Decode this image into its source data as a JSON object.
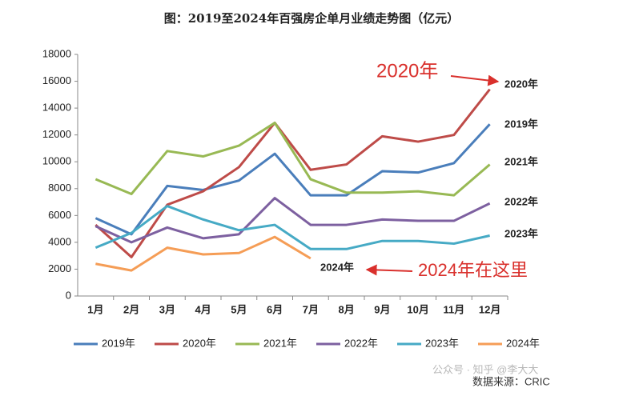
{
  "chart_data": {
    "type": "line",
    "title": "图：2019至2024年百强房企单月业绩走势图（亿元）",
    "categories": [
      "1月",
      "2月",
      "3月",
      "4月",
      "5月",
      "6月",
      "7月",
      "8月",
      "9月",
      "10月",
      "11月",
      "12月"
    ],
    "series": [
      {
        "name": "2019年",
        "color": "#4a7ebb",
        "values": [
          5800,
          4600,
          8200,
          7900,
          8600,
          10600,
          7500,
          7500,
          9300,
          9200,
          9900,
          12800
        ]
      },
      {
        "name": "2020年",
        "color": "#be4b48",
        "values": [
          5300,
          2900,
          6800,
          7800,
          9600,
          12900,
          9400,
          9800,
          11900,
          11500,
          12000,
          15400
        ]
      },
      {
        "name": "2021年",
        "color": "#98b954",
        "values": [
          8700,
          7600,
          10800,
          10400,
          11200,
          12900,
          8700,
          7700,
          7700,
          7800,
          7500,
          9800
        ]
      },
      {
        "name": "2022年",
        "color": "#7d60a0",
        "values": [
          5200,
          4000,
          5100,
          4300,
          4600,
          7300,
          5300,
          5300,
          5700,
          5600,
          5600,
          6900
        ]
      },
      {
        "name": "2023年",
        "color": "#46aac5",
        "values": [
          3600,
          4700,
          6700,
          5700,
          4900,
          5300,
          3500,
          3500,
          4100,
          4100,
          3900,
          4500
        ]
      },
      {
        "name": "2024年",
        "color": "#f59d56",
        "values": [
          2400,
          1900,
          3600,
          3100,
          3200,
          4400,
          2800,
          null,
          null,
          null,
          null,
          null
        ]
      }
    ],
    "ylim": [
      0,
      18000
    ],
    "yticks": [
      0,
      2000,
      4000,
      6000,
      8000,
      10000,
      12000,
      14000,
      16000,
      18000
    ],
    "grid": false,
    "annotations": [
      "2020年",
      "2024年在这里"
    ],
    "source": "数据来源：CRIC",
    "watermark": "公众号 · 知乎 @李大大"
  }
}
